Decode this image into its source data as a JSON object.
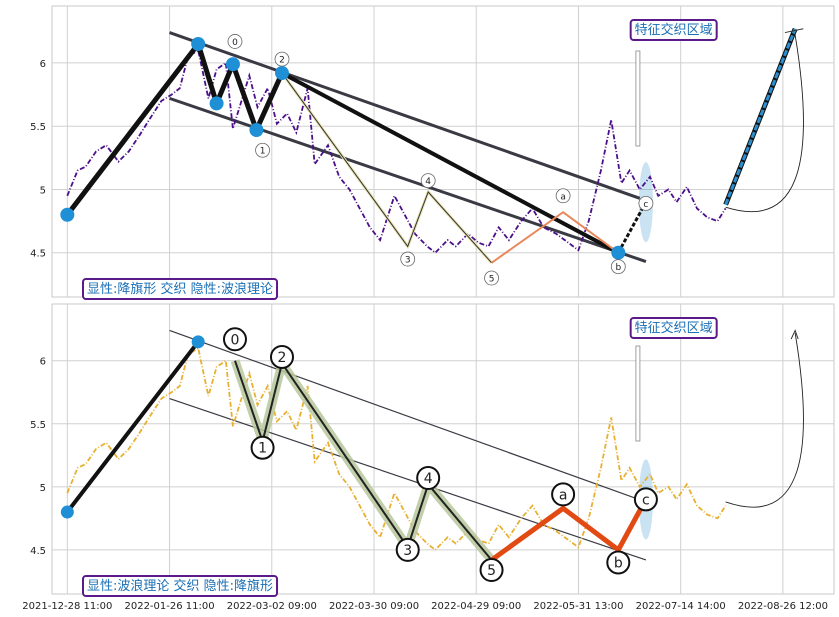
{
  "colors": {
    "grid": "#d0d0d0",
    "frame": "#c9c9c9",
    "price_top": "#4b0f8a",
    "price_bottom": "#e8b030",
    "pivot": "#1f8fd6",
    "channel": "#3a3a44",
    "wave_fill": "#b7c79c",
    "correction_top": "#e8885a",
    "correction_bottom": "#e24a14",
    "projection": "#2b8fcf",
    "box_border": "#5a1a8a",
    "box_text": "#1a6fb5"
  },
  "chart_data": [
    {
      "type": "line",
      "panel": "top",
      "ylim": [
        4.15,
        6.45
      ],
      "yticks": [
        4.5,
        5.0,
        5.5,
        6.0
      ],
      "xlim": [
        -0.15,
        7.5
      ],
      "series": [
        {
          "role": "price",
          "x": [
            0.0,
            0.1,
            0.18,
            0.28,
            0.38,
            0.5,
            0.6,
            0.7,
            0.8,
            0.92,
            1.02,
            1.1,
            1.18,
            1.28,
            1.38,
            1.46,
            1.55,
            1.62,
            1.78,
            1.86,
            1.96,
            2.05,
            2.15,
            2.24,
            2.35,
            2.42,
            2.55,
            2.66,
            2.76,
            2.86,
            2.96,
            3.06,
            3.2,
            3.3,
            3.4,
            3.52,
            3.6,
            3.72,
            3.8,
            3.92,
            4.02,
            4.12,
            4.22,
            4.32,
            4.44,
            4.55,
            4.66,
            4.78,
            4.9,
            5.0,
            5.1,
            5.22,
            5.32,
            5.42,
            5.5,
            5.6,
            5.7,
            5.78,
            5.88,
            5.96,
            6.06,
            6.16,
            6.26,
            6.36,
            6.44
          ],
          "y": [
            4.95,
            5.15,
            5.18,
            5.3,
            5.35,
            5.22,
            5.3,
            5.42,
            5.55,
            5.7,
            5.75,
            5.8,
            6.05,
            6.1,
            5.72,
            5.95,
            6.0,
            5.48,
            5.9,
            5.65,
            5.8,
            5.52,
            5.6,
            5.45,
            5.8,
            5.2,
            5.35,
            5.1,
            5.0,
            4.85,
            4.7,
            4.6,
            4.95,
            4.8,
            4.65,
            4.55,
            4.5,
            4.6,
            4.55,
            4.65,
            4.58,
            4.55,
            4.7,
            4.6,
            4.75,
            4.85,
            4.7,
            4.65,
            4.58,
            4.52,
            4.75,
            5.15,
            5.55,
            5.05,
            5.15,
            5.0,
            5.1,
            4.95,
            5.0,
            4.9,
            5.02,
            4.85,
            4.78,
            4.75,
            4.85
          ]
        },
        {
          "role": "zigzag",
          "x": [
            0.0,
            1.28,
            1.46,
            1.62,
            1.85,
            2.1
          ],
          "y": [
            4.8,
            6.15,
            5.68,
            5.99,
            5.47,
            5.92
          ]
        },
        {
          "role": "big-leg",
          "x": [
            2.1,
            5.39
          ],
          "y": [
            5.92,
            4.5
          ]
        },
        {
          "role": "thin-wave",
          "x": [
            2.1,
            3.33,
            3.53,
            4.15
          ],
          "y": [
            5.92,
            4.55,
            4.98,
            4.42
          ]
        },
        {
          "role": "correction",
          "x": [
            4.15,
            4.85,
            5.39
          ],
          "y": [
            4.42,
            4.82,
            4.5
          ]
        },
        {
          "role": "projection",
          "x": [
            6.44,
            7.12
          ],
          "y": [
            4.88,
            6.27
          ]
        }
      ],
      "channels": [
        {
          "x": [
            1.0,
            5.6
          ],
          "y": [
            6.24,
            4.93
          ]
        },
        {
          "x": [
            1.0,
            5.66
          ],
          "y": [
            5.72,
            4.43
          ]
        }
      ],
      "pivots": [
        {
          "x": 0.0,
          "y": 4.8
        },
        {
          "x": 1.28,
          "y": 6.15
        },
        {
          "x": 1.46,
          "y": 5.68
        },
        {
          "x": 1.62,
          "y": 5.99
        },
        {
          "x": 1.85,
          "y": 5.47
        },
        {
          "x": 2.1,
          "y": 5.92
        },
        {
          "x": 5.39,
          "y": 4.5
        }
      ],
      "wave_labels": [
        {
          "text": "0",
          "x": 1.64,
          "y": 6.17
        },
        {
          "text": "1",
          "x": 1.91,
          "y": 5.31
        },
        {
          "text": "2",
          "x": 2.1,
          "y": 6.03
        },
        {
          "text": "3",
          "x": 3.33,
          "y": 4.45
        },
        {
          "text": "4",
          "x": 3.53,
          "y": 5.07
        },
        {
          "text": "5",
          "x": 4.15,
          "y": 4.3
        },
        {
          "text": "a",
          "x": 4.85,
          "y": 4.95
        },
        {
          "text": "b",
          "x": 5.39,
          "y": 4.39
        },
        {
          "text": "c",
          "x": 5.66,
          "y": 4.89
        }
      ],
      "corner_label": "显性:降旗形 交织 隐性:波浪理论",
      "box_label": "特征交织区域"
    },
    {
      "type": "line",
      "panel": "bottom",
      "ylim": [
        4.15,
        6.45
      ],
      "yticks": [
        4.5,
        5.0,
        5.5,
        6.0
      ],
      "xlim": [
        -0.15,
        7.5
      ],
      "series": [
        {
          "role": "price",
          "x": [
            0.0,
            0.1,
            0.18,
            0.28,
            0.38,
            0.5,
            0.6,
            0.7,
            0.8,
            0.92,
            1.02,
            1.1,
            1.18,
            1.28,
            1.38,
            1.46,
            1.55,
            1.62,
            1.78,
            1.86,
            1.96,
            2.05,
            2.15,
            2.24,
            2.35,
            2.42,
            2.55,
            2.66,
            2.76,
            2.86,
            2.96,
            3.06,
            3.2,
            3.3,
            3.4,
            3.52,
            3.6,
            3.72,
            3.8,
            3.92,
            4.02,
            4.12,
            4.22,
            4.32,
            4.44,
            4.55,
            4.66,
            4.78,
            4.9,
            5.0,
            5.1,
            5.22,
            5.32,
            5.42,
            5.5,
            5.6,
            5.7,
            5.78,
            5.88,
            5.96,
            6.06,
            6.16,
            6.26,
            6.36,
            6.44
          ],
          "y": [
            4.95,
            5.15,
            5.18,
            5.3,
            5.35,
            5.22,
            5.3,
            5.42,
            5.55,
            5.7,
            5.75,
            5.8,
            6.05,
            6.1,
            5.72,
            5.95,
            6.0,
            5.48,
            5.9,
            5.65,
            5.8,
            5.52,
            5.6,
            5.45,
            5.8,
            5.2,
            5.35,
            5.1,
            5.0,
            4.85,
            4.7,
            4.6,
            4.95,
            4.8,
            4.65,
            4.55,
            4.5,
            4.6,
            4.55,
            4.65,
            4.58,
            4.55,
            4.7,
            4.6,
            4.75,
            4.85,
            4.7,
            4.65,
            4.58,
            4.52,
            4.75,
            5.15,
            5.55,
            5.05,
            5.15,
            5.0,
            5.1,
            4.95,
            5.0,
            4.9,
            5.02,
            4.85,
            4.78,
            4.75,
            4.85
          ]
        },
        {
          "role": "trend",
          "x": [
            0.0,
            1.28
          ],
          "y": [
            4.8,
            6.15
          ]
        },
        {
          "role": "wave",
          "x": [
            1.64,
            1.91,
            2.1,
            3.33,
            3.53,
            4.15
          ],
          "y": [
            6.0,
            5.36,
            5.98,
            4.52,
            5.02,
            4.42
          ]
        },
        {
          "role": "correction",
          "x": [
            4.15,
            4.85,
            5.39,
            5.66
          ],
          "y": [
            4.42,
            4.83,
            4.5,
            4.9
          ]
        }
      ],
      "channels": [
        {
          "x": [
            1.0,
            5.66
          ],
          "y": [
            6.24,
            4.88
          ]
        },
        {
          "x": [
            1.0,
            5.66
          ],
          "y": [
            5.7,
            4.42
          ]
        }
      ],
      "pivots": [
        {
          "x": 1.28,
          "y": 6.15
        },
        {
          "x": 0.0,
          "y": 4.8
        }
      ],
      "wave_labels": [
        {
          "text": "0",
          "x": 1.64,
          "y": 6.17
        },
        {
          "text": "1",
          "x": 1.91,
          "y": 5.31
        },
        {
          "text": "2",
          "x": 2.1,
          "y": 6.03
        },
        {
          "text": "3",
          "x": 3.33,
          "y": 4.5
        },
        {
          "text": "4",
          "x": 3.53,
          "y": 5.07
        },
        {
          "text": "5",
          "x": 4.15,
          "y": 4.34
        },
        {
          "text": "a",
          "x": 4.85,
          "y": 4.94
        },
        {
          "text": "b",
          "x": 5.39,
          "y": 4.4
        },
        {
          "text": "c",
          "x": 5.66,
          "y": 4.9
        }
      ],
      "corner_label": "显性:波浪理论 交织 隐性:降旗形",
      "box_label": "特征交织区域"
    }
  ],
  "x_axis": {
    "tick_labels": [
      "2021-12-28 11:00",
      "2022-01-26 11:00",
      "2022-03-02 09:00",
      "2022-03-30 09:00",
      "2022-04-29 09:00",
      "2022-05-31 13:00",
      "2022-07-14 14:00",
      "2022-08-26 12:00"
    ]
  }
}
